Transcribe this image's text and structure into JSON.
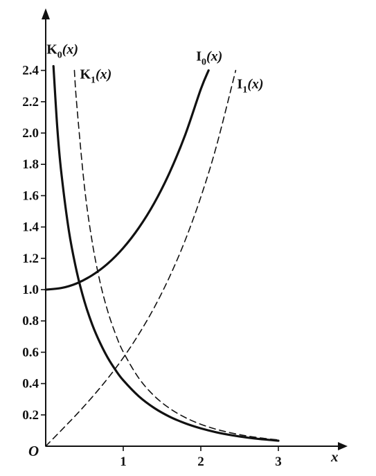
{
  "chart_data": {
    "type": "line",
    "title": "",
    "xlabel": "x",
    "ylabel": "",
    "origin_label": "O",
    "xlim": [
      0,
      3.8
    ],
    "ylim": [
      0,
      2.6
    ],
    "x_ticks": [
      {
        "value": 1,
        "label": "1"
      },
      {
        "value": 2,
        "label": "2"
      },
      {
        "value": 3,
        "label": "3"
      }
    ],
    "y_ticks": [
      {
        "value": 0.2,
        "label": "0.2"
      },
      {
        "value": 0.4,
        "label": "0.4"
      },
      {
        "value": 0.6,
        "label": "0.6"
      },
      {
        "value": 0.8,
        "label": "0.8"
      },
      {
        "value": 1.0,
        "label": "1.0"
      },
      {
        "value": 1.2,
        "label": "1.2"
      },
      {
        "value": 1.4,
        "label": "1.4"
      },
      {
        "value": 1.6,
        "label": "1.6"
      },
      {
        "value": 1.8,
        "label": "1.8"
      },
      {
        "value": 2.0,
        "label": "2.0"
      },
      {
        "value": 2.2,
        "label": "2.2"
      },
      {
        "value": 2.4,
        "label": "2.4"
      }
    ],
    "grid": false,
    "legend": "none (curves labeled directly)",
    "series": [
      {
        "name": "K",
        "subscript": "0",
        "argument": "(x)",
        "style": "solid",
        "color": "#111111",
        "x": [
          0.1,
          0.15,
          0.2,
          0.3,
          0.4,
          0.5,
          0.6,
          0.7,
          0.8,
          0.9,
          1.0,
          1.2,
          1.4,
          1.6,
          1.8,
          2.0,
          2.2,
          2.4,
          2.6,
          2.8,
          3.0
        ],
        "y": [
          2.427,
          2.03,
          1.753,
          1.372,
          1.115,
          0.924,
          0.777,
          0.661,
          0.565,
          0.487,
          0.421,
          0.319,
          0.244,
          0.188,
          0.146,
          0.114,
          0.089,
          0.07,
          0.055,
          0.044,
          0.035
        ]
      },
      {
        "name": "K",
        "subscript": "1",
        "argument": "(x)",
        "style": "dashed",
        "color": "#111111",
        "x": [
          0.37,
          0.4,
          0.5,
          0.6,
          0.7,
          0.8,
          0.9,
          1.0,
          1.2,
          1.4,
          1.6,
          1.8,
          2.0,
          2.2,
          2.4,
          2.6,
          2.8,
          3.0
        ],
        "y": [
          2.4,
          2.184,
          1.656,
          1.303,
          1.05,
          0.862,
          0.717,
          0.602,
          0.435,
          0.321,
          0.241,
          0.183,
          0.14,
          0.108,
          0.084,
          0.065,
          0.051,
          0.04
        ]
      },
      {
        "name": "I",
        "subscript": "0",
        "argument": "(x)",
        "style": "solid",
        "color": "#111111",
        "x": [
          0.0,
          0.2,
          0.4,
          0.6,
          0.8,
          1.0,
          1.2,
          1.4,
          1.6,
          1.8,
          2.0,
          2.1
        ],
        "y": [
          1.0,
          1.01,
          1.04,
          1.092,
          1.166,
          1.266,
          1.394,
          1.553,
          1.75,
          1.99,
          2.28,
          2.4
        ]
      },
      {
        "name": "I",
        "subscript": "1",
        "argument": "(x)",
        "style": "dashed",
        "color": "#111111",
        "x": [
          0.0,
          0.2,
          0.4,
          0.6,
          0.8,
          1.0,
          1.2,
          1.4,
          1.6,
          1.8,
          2.0,
          2.2,
          2.45
        ],
        "y": [
          0.0,
          0.101,
          0.204,
          0.314,
          0.433,
          0.565,
          0.715,
          0.886,
          1.085,
          1.317,
          1.591,
          1.914,
          2.4
        ]
      }
    ]
  }
}
